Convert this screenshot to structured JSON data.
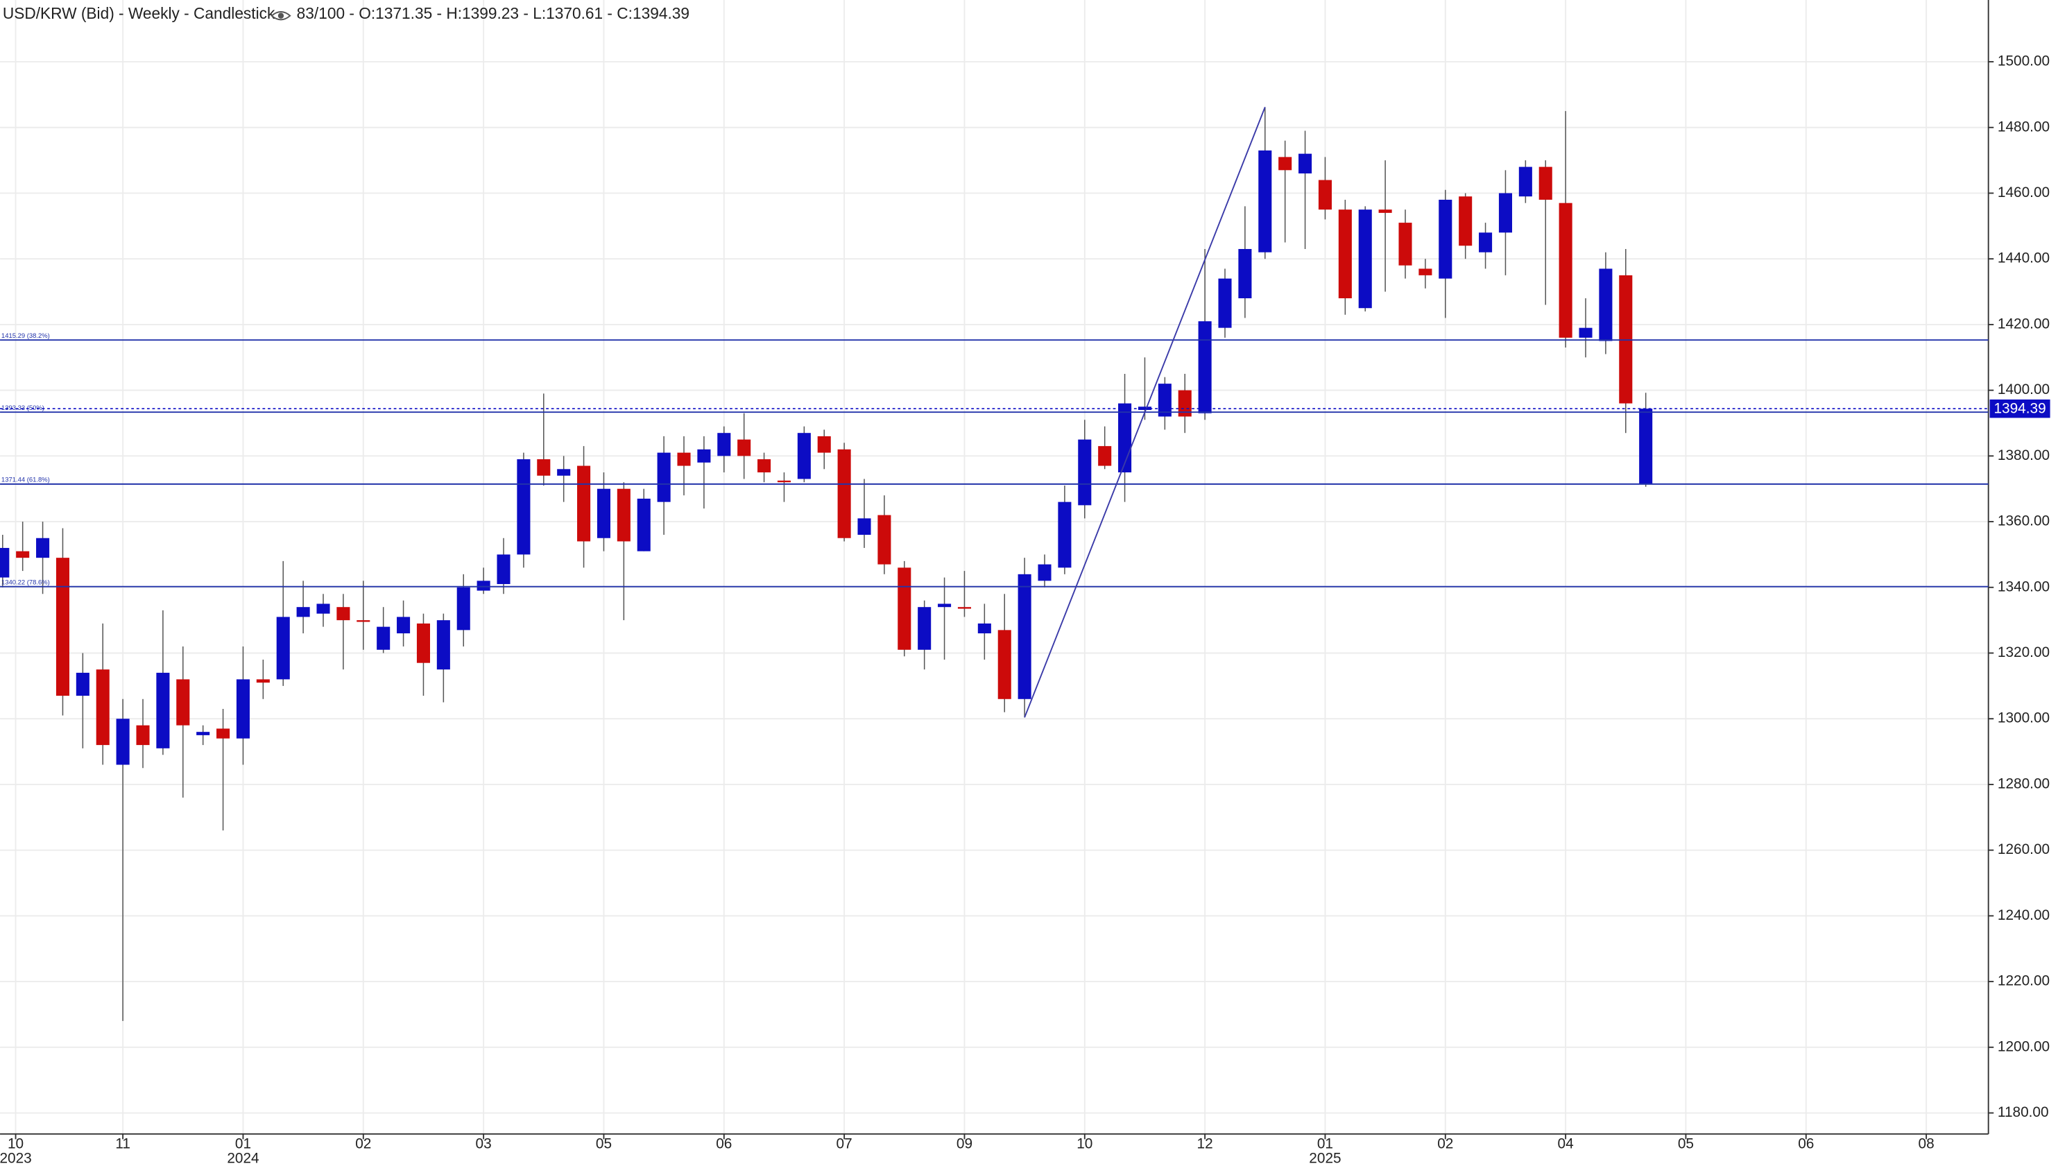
{
  "header": {
    "title": "USD/KRW (Bid) - Weekly - Candlestick",
    "info": "83/100 - O:1371.35 - H:1399.23 - L:1370.61 - C:1394.39"
  },
  "chart_data": {
    "type": "candlestick",
    "up_color": "#0c0cc4",
    "down_color": "#cc0a0a",
    "open": [
      1343,
      1351,
      1349,
      1349,
      1307,
      1315,
      1286,
      1298,
      1291,
      1312,
      1295,
      1297,
      1294,
      1312,
      1312,
      1331,
      1332,
      1334,
      1330,
      1321,
      1326,
      1329,
      1315,
      1327,
      1339,
      1341,
      1350,
      1379,
      1374,
      1377,
      1355,
      1370,
      1351,
      1366,
      1381,
      1378,
      1380,
      1385,
      1379,
      1372.5,
      1373,
      1386,
      1382,
      1356,
      1362,
      1346,
      1321,
      1334,
      1334,
      1326,
      1327,
      1306,
      1342,
      1346,
      1365,
      1383,
      1375,
      1394,
      1392,
      1400,
      1393,
      1419,
      1428,
      1442,
      1471,
      1466,
      1464,
      1455,
      1425,
      1455,
      1451,
      1437,
      1434,
      1459,
      1442,
      1448,
      1459,
      1468,
      1457,
      1416,
      1415,
      1435,
      1371.35
    ],
    "high": [
      1356,
      1360,
      1360,
      1358,
      1320,
      1329,
      1306,
      1306,
      1333,
      1322,
      1298,
      1303,
      1322,
      1318,
      1348,
      1342,
      1338,
      1338,
      1342,
      1334,
      1336,
      1332,
      1332,
      1344,
      1346,
      1355,
      1381,
      1399,
      1380,
      1383,
      1375,
      1372,
      1370,
      1386,
      1386,
      1386,
      1389,
      1393,
      1381,
      1375,
      1389,
      1388,
      1384,
      1373,
      1368,
      1348,
      1336,
      1343,
      1345,
      1335,
      1338,
      1349,
      1350,
      1371,
      1391,
      1389,
      1405,
      1410,
      1404,
      1405,
      1443,
      1437,
      1456,
      1486.2,
      1476,
      1479,
      1471,
      1458,
      1456,
      1470,
      1455,
      1440,
      1461,
      1460,
      1451,
      1467,
      1470,
      1470,
      1485,
      1428,
      1442,
      1443,
      1399.23
    ],
    "low": [
      1340,
      1345,
      1338,
      1301,
      1291,
      1286,
      1208,
      1285,
      1289,
      1276,
      1292,
      1266,
      1286,
      1306,
      1310,
      1326,
      1328,
      1315,
      1321,
      1320,
      1322,
      1307,
      1305,
      1322,
      1338,
      1338,
      1346,
      1371,
      1366,
      1346,
      1351,
      1330,
      1351,
      1356,
      1368,
      1364,
      1375,
      1373,
      1372,
      1366,
      1372,
      1376,
      1354,
      1352,
      1344,
      1319,
      1315,
      1318,
      1331,
      1318,
      1302,
      1300.4,
      1340,
      1344,
      1361,
      1376,
      1366,
      1391,
      1388,
      1387,
      1391,
      1416,
      1422,
      1440,
      1445,
      1443,
      1452,
      1423,
      1424,
      1430,
      1434,
      1431,
      1422,
      1440,
      1437,
      1435,
      1457,
      1426,
      1413,
      1410,
      1411,
      1387,
      1370.61
    ],
    "close": [
      1352,
      1349,
      1355,
      1307,
      1314,
      1292,
      1300,
      1292,
      1314,
      1298,
      1296,
      1294,
      1312,
      1311,
      1331,
      1334,
      1335,
      1330,
      1329.5,
      1328,
      1331,
      1317,
      1330,
      1340,
      1342,
      1350,
      1379,
      1374,
      1376,
      1354,
      1370,
      1354,
      1367,
      1381,
      1377,
      1382,
      1387,
      1380,
      1375,
      1372,
      1387,
      1381,
      1355,
      1361,
      1347,
      1321,
      1334,
      1335,
      1333.5,
      1329,
      1306,
      1344,
      1347,
      1366,
      1385,
      1377,
      1396,
      1395,
      1402,
      1392,
      1421,
      1434,
      1443,
      1473,
      1467,
      1472,
      1455,
      1428,
      1455,
      1454,
      1438,
      1435,
      1458,
      1444,
      1448,
      1460,
      1468,
      1458,
      1416,
      1419,
      1437,
      1396,
      1394.39
    ],
    "trend_line": {
      "from": 51,
      "to": 63,
      "color": "#3a3aa8"
    },
    "fib_levels": [
      {
        "value": 1415.29,
        "label": "1415.29 (38.2%)"
      },
      {
        "value": 1393.33,
        "label": "1393.33 (50%)"
      },
      {
        "value": 1371.44,
        "label": "1371.44 (61.8%)"
      },
      {
        "value": 1340.22,
        "label": "1340.22 (78.6%)"
      }
    ],
    "fib_color": "#2233aa",
    "last_price": 1394.39,
    "ylim": [
      1173.6,
      1518.8
    ],
    "yticks": [
      {
        "value": 1180,
        "label": "1180.00"
      },
      {
        "value": 1200,
        "label": "1200.00"
      },
      {
        "value": 1220,
        "label": "1220.00"
      },
      {
        "value": 1240,
        "label": "1240.00"
      },
      {
        "value": 1260,
        "label": "1260.00"
      },
      {
        "value": 1280,
        "label": "1280.00"
      },
      {
        "value": 1300,
        "label": "1300.00"
      },
      {
        "value": 1320,
        "label": "1320.00"
      },
      {
        "value": 1340,
        "label": "1340.00"
      },
      {
        "value": 1360,
        "label": "1360.00"
      },
      {
        "value": 1380,
        "label": "1380.00"
      },
      {
        "value": 1400,
        "label": "1400.00"
      },
      {
        "value": 1420,
        "label": "1420.00"
      },
      {
        "value": 1440,
        "label": "1440.00"
      },
      {
        "value": 1460,
        "label": "1460.00"
      },
      {
        "value": 1480,
        "label": "1480.00"
      },
      {
        "value": 1500,
        "label": "1500.00"
      }
    ],
    "xlim": [
      -0.13,
      99.1
    ],
    "xticks": [
      {
        "value": 0.65,
        "label": "10"
      },
      {
        "value": 6,
        "label": "11"
      },
      {
        "value": 12,
        "label": "01"
      },
      {
        "value": 18,
        "label": "02"
      },
      {
        "value": 24,
        "label": "03"
      },
      {
        "value": 30,
        "label": "05"
      },
      {
        "value": 36,
        "label": "06"
      },
      {
        "value": 42,
        "label": "07"
      },
      {
        "value": 48,
        "label": "09"
      },
      {
        "value": 54,
        "label": "10"
      },
      {
        "value": 60,
        "label": "12"
      },
      {
        "value": 66,
        "label": "01"
      },
      {
        "value": 72,
        "label": "02"
      },
      {
        "value": 78,
        "label": "04"
      },
      {
        "value": 84,
        "label": "05"
      },
      {
        "value": 90,
        "label": "06"
      },
      {
        "value": 96,
        "label": "08"
      }
    ],
    "years": [
      {
        "value": 0.65,
        "label": "2023"
      },
      {
        "value": 12,
        "label": "2024"
      },
      {
        "value": 66,
        "label": "2025"
      }
    ],
    "grid": true
  }
}
